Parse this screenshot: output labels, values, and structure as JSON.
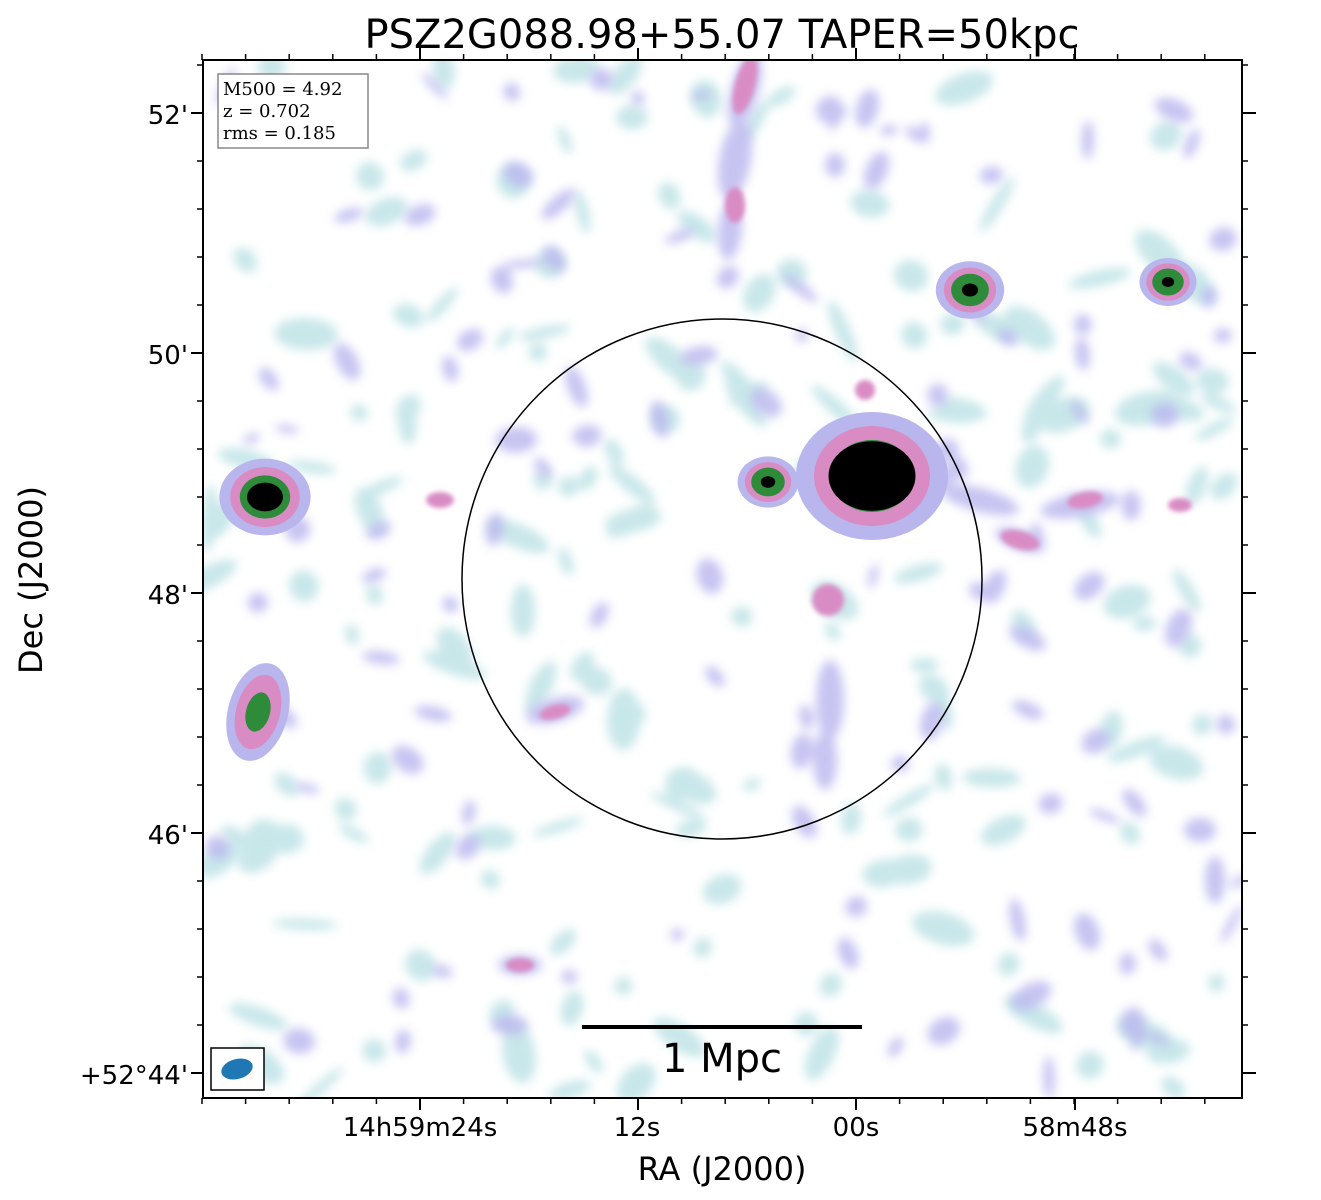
{
  "title": "PSZ2G088.98+55.07 TAPER=50kpc",
  "xlabel": "RA (J2000)",
  "ylabel": "Dec (J2000)",
  "x_ticks": [
    "14h59m24s",
    "12s",
    "00s",
    "58m48s"
  ],
  "y_ticks": [
    "52'",
    "50'",
    "48'",
    "46'",
    "+52°44'"
  ],
  "info_box": [
    "M500 = 4.92",
    "z = 0.702",
    "rms = 0.185"
  ],
  "scale_bar_label": "1 Mpc",
  "colors": {
    "frame": "#000000",
    "beam": "#1f77b4",
    "emission_low": "#bfe3e6",
    "emission_mid": "#b9b6ee",
    "emission_high": "#d98cc4",
    "emission_peak": "#2e8b3a",
    "emission_core": "#000000"
  }
}
